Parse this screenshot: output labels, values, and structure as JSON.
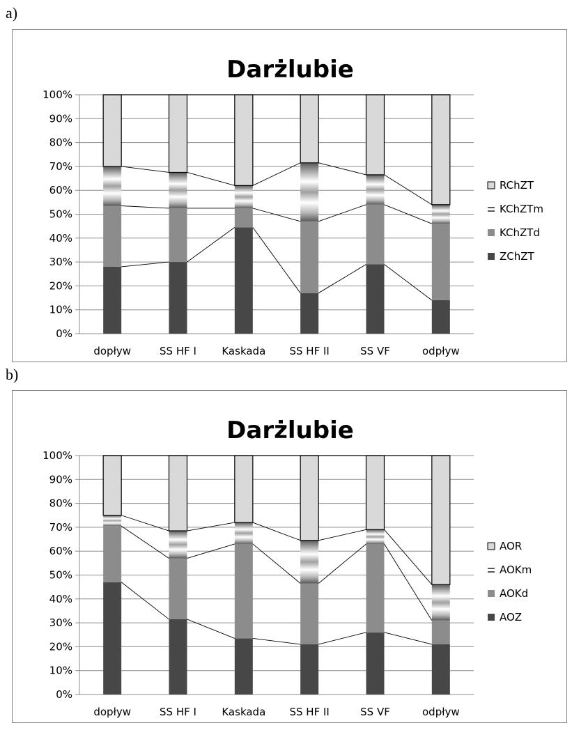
{
  "panels": {
    "a_label": "a)",
    "b_label": "b)"
  },
  "colors": {
    "bottom": "#474747",
    "second": "#8c8c8c",
    "stripe_dark": "#5a5a5a",
    "stripe_light": "#ffffff",
    "top": "#d9d9d9",
    "grid": "#8c8c8c",
    "connector": "#000000"
  },
  "chart_data": [
    {
      "type": "bar",
      "stacked": true,
      "title": "Darżlubie",
      "categories": [
        "dopływ",
        "SS HF I",
        "Kaskada",
        "SS HF II",
        "SS VF",
        "odpływ"
      ],
      "ylim": [
        0,
        100
      ],
      "yticks": [
        "0%",
        "10%",
        "20%",
        "30%",
        "40%",
        "50%",
        "60%",
        "70%",
        "80%",
        "90%",
        "100%"
      ],
      "grid": true,
      "legend_position": "right",
      "series": [
        {
          "name": "ZChZT",
          "values": [
            28,
            30,
            44.5,
            17,
            29,
            14
          ]
        },
        {
          "name": "KChZTd",
          "values": [
            25.5,
            22.5,
            8,
            30,
            25,
            32
          ]
        },
        {
          "name": "KChZTm",
          "values": [
            16.5,
            15,
            9.5,
            24.5,
            12.5,
            8
          ]
        },
        {
          "name": "RChZT",
          "values": [
            30,
            32.5,
            38,
            28.5,
            33.5,
            46
          ]
        }
      ]
    },
    {
      "type": "bar",
      "stacked": true,
      "title": "Darżlubie",
      "categories": [
        "dopływ",
        "SS HF I",
        "Kaskada",
        "SS HF II",
        "SS VF",
        "odpływ"
      ],
      "ylim": [
        0,
        100
      ],
      "yticks": [
        "0%",
        "10%",
        "20%",
        "30%",
        "40%",
        "50%",
        "60%",
        "70%",
        "80%",
        "90%",
        "100%"
      ],
      "grid": true,
      "legend_position": "right",
      "series": [
        {
          "name": "AOZ",
          "values": [
            47,
            31.5,
            23.5,
            21,
            26,
            21
          ]
        },
        {
          "name": "AOKd",
          "values": [
            23.5,
            25.5,
            39.5,
            25.5,
            37,
            10
          ]
        },
        {
          "name": "AOKm",
          "values": [
            4.5,
            11.5,
            9,
            18,
            6,
            15
          ]
        },
        {
          "name": "AOR",
          "values": [
            25,
            31.5,
            28,
            35.5,
            31,
            54
          ]
        }
      ]
    }
  ]
}
